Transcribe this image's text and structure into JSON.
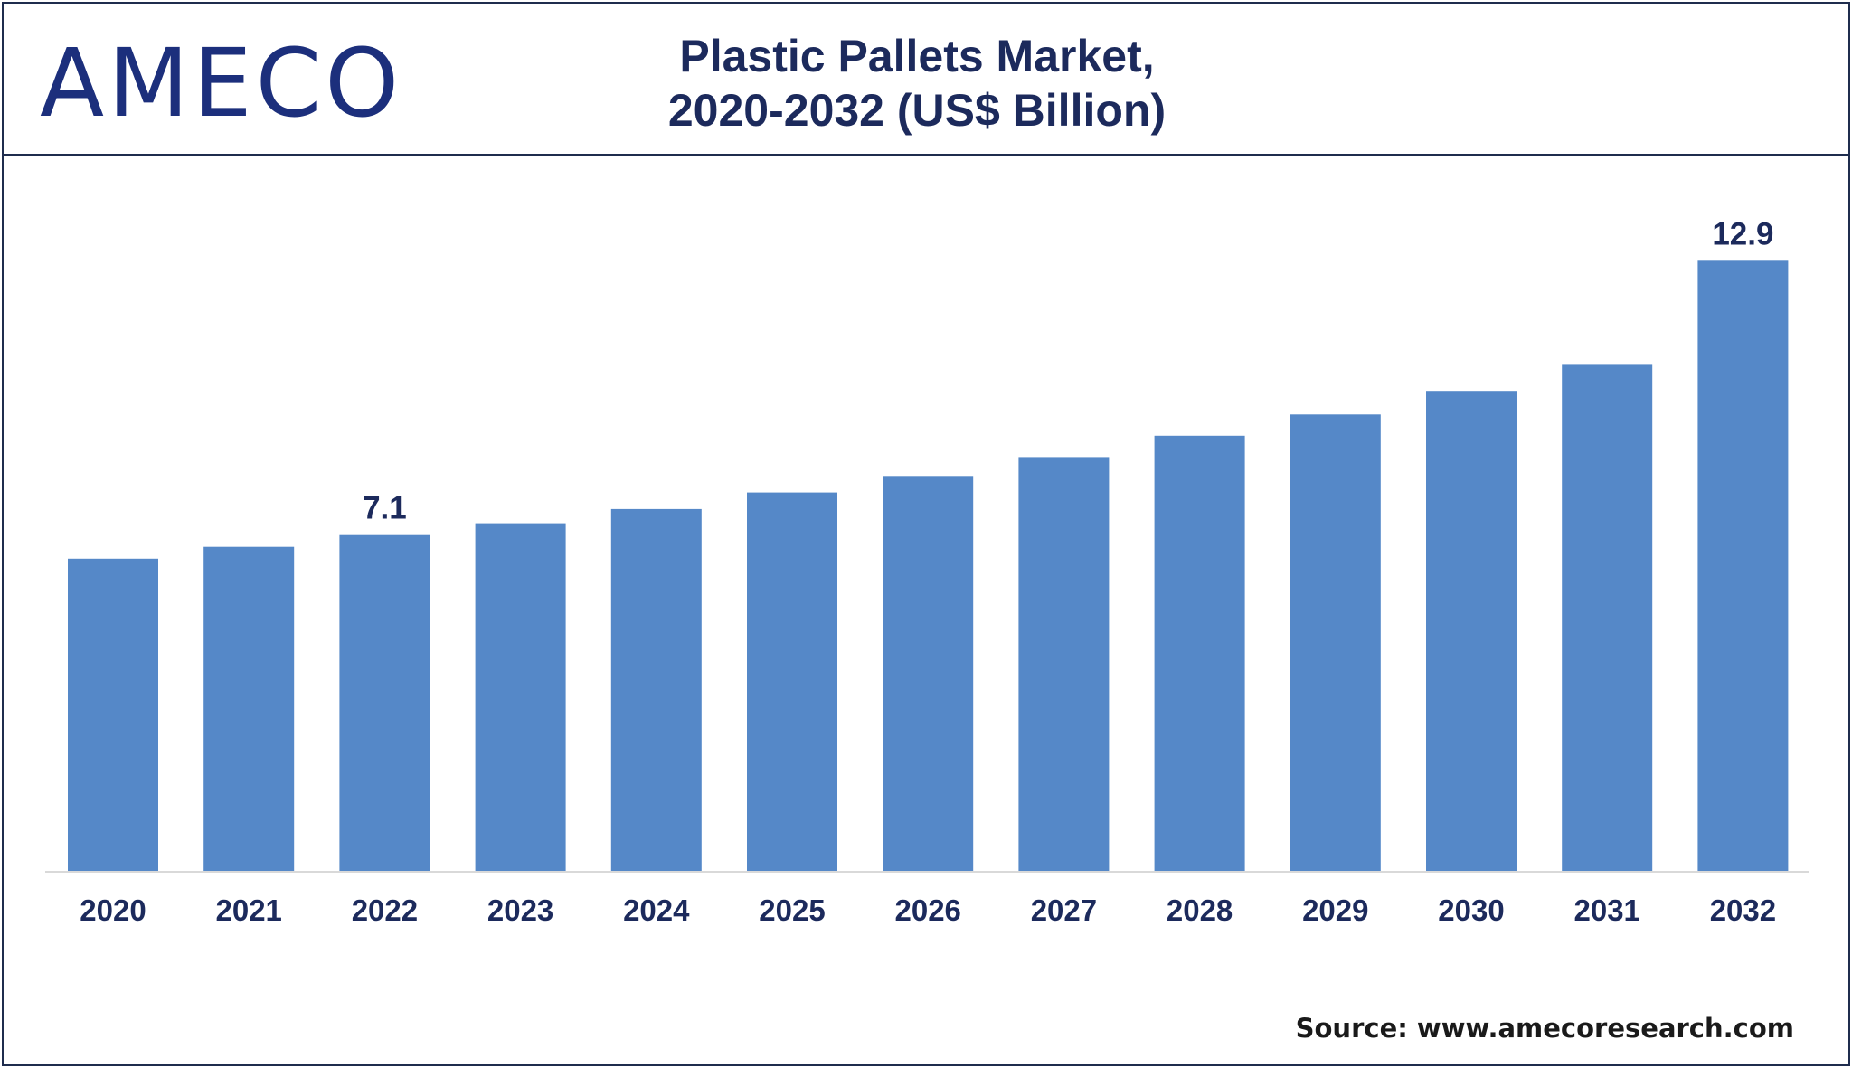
{
  "logo_text": "AMECO",
  "title_line1": "Plastic Pallets Market,",
  "title_line2": "2020-2032 (US$ Billion)",
  "source": "Source: www.amecoresearch.com",
  "colors": {
    "bar": "#5588c8",
    "text_dark": "#1c2a5c",
    "frame": "#1f2d4e",
    "axis": "#d9d9d9"
  },
  "chart_data": {
    "type": "bar",
    "categories": [
      "2020",
      "2021",
      "2022",
      "2023",
      "2024",
      "2025",
      "2026",
      "2027",
      "2028",
      "2029",
      "2030",
      "2031",
      "2032"
    ],
    "values": [
      6.6,
      6.85,
      7.1,
      7.35,
      7.65,
      8.0,
      8.35,
      8.75,
      9.2,
      9.65,
      10.15,
      10.7,
      12.9
    ],
    "data_labels": [
      {
        "index": 2,
        "text": "7.1"
      },
      {
        "index": 12,
        "text": "12.9"
      }
    ],
    "title": "Plastic Pallets Market, 2020-2032 (US$ Billion)",
    "xlabel": "",
    "ylabel": "",
    "grid": false,
    "legend": "none"
  }
}
